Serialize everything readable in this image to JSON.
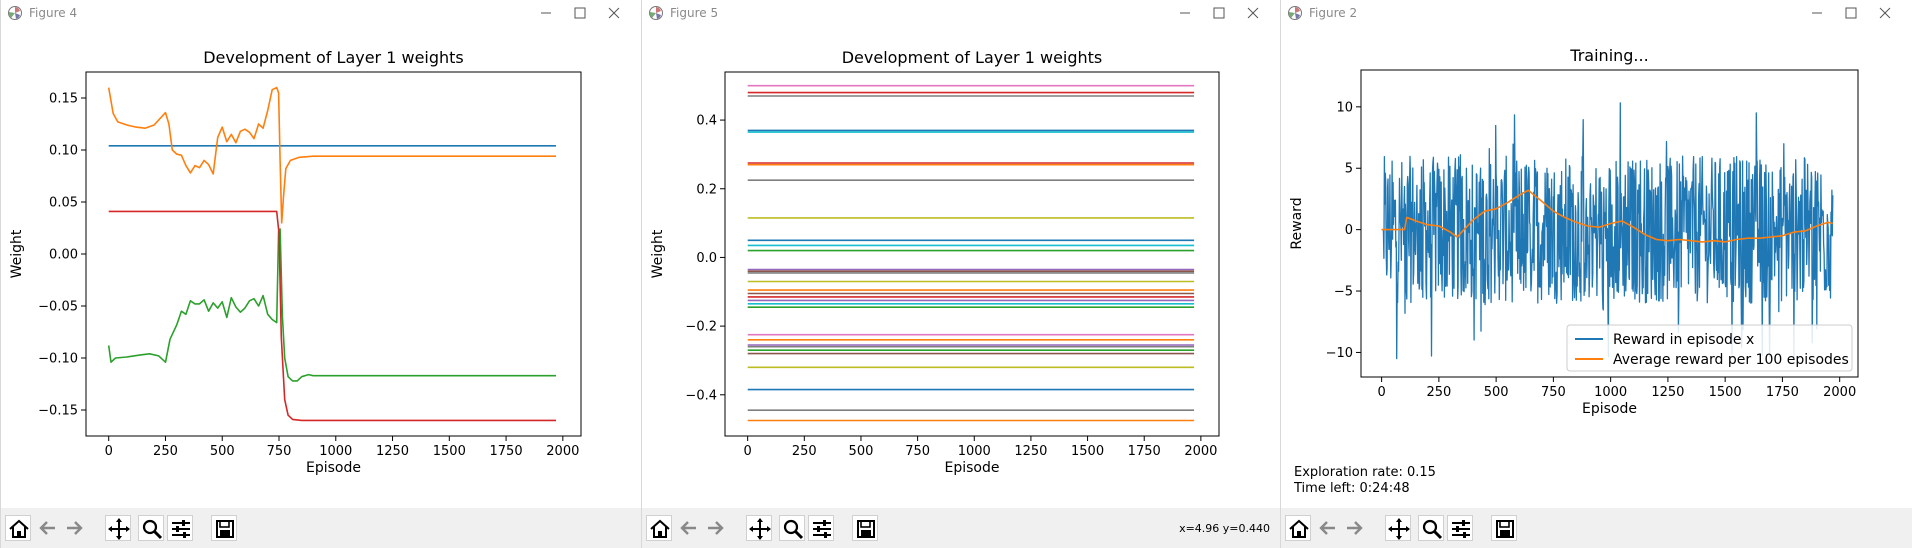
{
  "windows": [
    {
      "title": "Figure 4",
      "coords": "",
      "chart": {
        "type": "line",
        "title": "Development of Layer 1 weights",
        "xlabel": "Episode",
        "ylabel": "Weight",
        "xlim": [
          -100,
          2080
        ],
        "ylim": [
          -0.175,
          0.175
        ],
        "xticks": [
          0,
          250,
          500,
          750,
          1000,
          1250,
          1500,
          1750,
          2000
        ],
        "yticks": [
          -0.15,
          -0.1,
          -0.05,
          0.0,
          0.05,
          0.1,
          0.15
        ],
        "ytick_labels": [
          "−0.15",
          "−0.10",
          "−0.05",
          "0.00",
          "0.05",
          "0.10",
          "0.15"
        ]
      }
    },
    {
      "title": "Figure 5",
      "coords": "x=4.96 y=0.440",
      "chart": {
        "type": "line",
        "title": "Development of Layer 1 weights",
        "xlabel": "Episode",
        "ylabel": "Weight",
        "xlim": [
          -100,
          2080
        ],
        "ylim": [
          -0.52,
          0.54
        ],
        "xticks": [
          0,
          250,
          500,
          750,
          1000,
          1250,
          1500,
          1750,
          2000
        ],
        "yticks": [
          -0.4,
          -0.2,
          0.0,
          0.2,
          0.4
        ],
        "ytick_labels": [
          "−0.4",
          "−0.2",
          "0.0",
          "0.2",
          "0.4"
        ]
      }
    },
    {
      "title": "Figure 2",
      "coords": "",
      "exploration_rate": "Exploration rate: 0.15",
      "time_left": "Time left: 0:24:48",
      "chart": {
        "type": "line",
        "title": "Training...",
        "xlabel": "Episode",
        "ylabel": "Reward",
        "xlim": [
          -90,
          2080
        ],
        "ylim": [
          -12.0,
          13.0
        ],
        "xticks": [
          0,
          250,
          500,
          750,
          1000,
          1250,
          1500,
          1750,
          2000
        ],
        "yticks": [
          -10,
          -5,
          0,
          5,
          10
        ],
        "ytick_labels": [
          "−10",
          "−5",
          "0",
          "5",
          "10"
        ],
        "legend": [
          "Reward in episode x",
          "Average reward per 100 episodes"
        ],
        "legend_position": "lower-right"
      }
    }
  ],
  "chart_data": [
    {
      "type": "line",
      "title": "Development of Layer 1 weights",
      "xlabel": "Episode",
      "ylabel": "Weight",
      "xlim": [
        0,
        1970
      ],
      "ylim": [
        -0.175,
        0.175
      ],
      "series": [
        {
          "color": "#1f77b4",
          "points": [
            [
              0,
              0.104
            ],
            [
              1970,
              0.104
            ]
          ]
        },
        {
          "color": "#ff7f0e",
          "points": [
            [
              0,
              0.16
            ],
            [
              20,
              0.135
            ],
            [
              40,
              0.127
            ],
            [
              80,
              0.124
            ],
            [
              120,
              0.122
            ],
            [
              160,
              0.121
            ],
            [
              200,
              0.124
            ],
            [
              225,
              0.13
            ],
            [
              250,
              0.136
            ],
            [
              265,
              0.125
            ],
            [
              280,
              0.1
            ],
            [
              300,
              0.096
            ],
            [
              320,
              0.095
            ],
            [
              340,
              0.085
            ],
            [
              360,
              0.078
            ],
            [
              380,
              0.085
            ],
            [
              400,
              0.083
            ],
            [
              420,
              0.09
            ],
            [
              440,
              0.086
            ],
            [
              460,
              0.077
            ],
            [
              480,
              0.112
            ],
            [
              500,
              0.122
            ],
            [
              520,
              0.108
            ],
            [
              540,
              0.115
            ],
            [
              560,
              0.107
            ],
            [
              580,
              0.118
            ],
            [
              600,
              0.12
            ],
            [
              620,
              0.117
            ],
            [
              640,
              0.111
            ],
            [
              660,
              0.125
            ],
            [
              680,
              0.121
            ],
            [
              700,
              0.138
            ],
            [
              720,
              0.158
            ],
            [
              740,
              0.16
            ],
            [
              748,
              0.155
            ],
            [
              755,
              0.09
            ],
            [
              762,
              0.03
            ],
            [
              770,
              0.055
            ],
            [
              780,
              0.082
            ],
            [
              800,
              0.09
            ],
            [
              840,
              0.093
            ],
            [
              900,
              0.094
            ],
            [
              1970,
              0.094
            ]
          ]
        },
        {
          "color": "#2ca02c",
          "points": [
            [
              0,
              -0.088
            ],
            [
              10,
              -0.104
            ],
            [
              30,
              -0.1
            ],
            [
              80,
              -0.099
            ],
            [
              140,
              -0.097
            ],
            [
              180,
              -0.096
            ],
            [
              220,
              -0.098
            ],
            [
              250,
              -0.104
            ],
            [
              270,
              -0.082
            ],
            [
              300,
              -0.068
            ],
            [
              320,
              -0.055
            ],
            [
              340,
              -0.058
            ],
            [
              360,
              -0.045
            ],
            [
              380,
              -0.048
            ],
            [
              400,
              -0.048
            ],
            [
              420,
              -0.044
            ],
            [
              440,
              -0.055
            ],
            [
              460,
              -0.047
            ],
            [
              480,
              -0.052
            ],
            [
              500,
              -0.046
            ],
            [
              520,
              -0.061
            ],
            [
              540,
              -0.042
            ],
            [
              560,
              -0.051
            ],
            [
              580,
              -0.056
            ],
            [
              600,
              -0.052
            ],
            [
              620,
              -0.045
            ],
            [
              640,
              -0.043
            ],
            [
              660,
              -0.05
            ],
            [
              680,
              -0.04
            ],
            [
              700,
              -0.058
            ],
            [
              720,
              -0.063
            ],
            [
              740,
              -0.066
            ],
            [
              748,
              0.022
            ],
            [
              755,
              0.024
            ],
            [
              765,
              -0.06
            ],
            [
              775,
              -0.1
            ],
            [
              790,
              -0.118
            ],
            [
              810,
              -0.122
            ],
            [
              830,
              -0.122
            ],
            [
              850,
              -0.118
            ],
            [
              880,
              -0.116
            ],
            [
              900,
              -0.117
            ],
            [
              1970,
              -0.117
            ]
          ]
        },
        {
          "color": "#d62728",
          "points": [
            [
              0,
              0.041
            ],
            [
              740,
              0.041
            ],
            [
              750,
              0.02
            ],
            [
              760,
              -0.08
            ],
            [
              775,
              -0.14
            ],
            [
              790,
              -0.155
            ],
            [
              810,
              -0.159
            ],
            [
              850,
              -0.16
            ],
            [
              1970,
              -0.16
            ]
          ]
        }
      ]
    },
    {
      "type": "line",
      "title": "Development of Layer 1 weights",
      "xlabel": "Episode",
      "ylabel": "Weight",
      "xlim": [
        0,
        1970
      ],
      "ylim": [
        -0.52,
        0.54
      ],
      "series": [
        {
          "color": "#e377c2",
          "value": 0.5
        },
        {
          "color": "#d62728",
          "value": 0.48
        },
        {
          "color": "#7f7f7f",
          "value": 0.47
        },
        {
          "color": "#1f77b4",
          "value": 0.37
        },
        {
          "color": "#17becf",
          "value": 0.365
        },
        {
          "color": "#d62728",
          "value": 0.275
        },
        {
          "color": "#ff7f0e",
          "value": 0.27
        },
        {
          "color": "#7f7f7f",
          "value": 0.225
        },
        {
          "color": "#bcbd22",
          "value": 0.115
        },
        {
          "color": "#1f77b4",
          "value": 0.05
        },
        {
          "color": "#17becf",
          "value": 0.035
        },
        {
          "color": "#2ca02c",
          "value": 0.02
        },
        {
          "color": "#9467bd",
          "value": -0.035
        },
        {
          "color": "#8c564b",
          "value": -0.04
        },
        {
          "color": "#7f7f7f",
          "value": -0.045
        },
        {
          "color": "#bcbd22",
          "value": -0.07
        },
        {
          "color": "#ff7f0e",
          "value": -0.095
        },
        {
          "color": "#8c564b",
          "value": -0.105
        },
        {
          "color": "#d62728",
          "value": -0.115
        },
        {
          "color": "#9467bd",
          "value": -0.125
        },
        {
          "color": "#17becf",
          "value": -0.135
        },
        {
          "color": "#2ca02c",
          "value": -0.145
        },
        {
          "color": "#e377c2",
          "value": -0.225
        },
        {
          "color": "#ff7f0e",
          "value": -0.24
        },
        {
          "color": "#9467bd",
          "value": -0.255
        },
        {
          "color": "#7f7f7f",
          "value": -0.26
        },
        {
          "color": "#2ca02c",
          "value": -0.27
        },
        {
          "color": "#8c564b",
          "value": -0.28
        },
        {
          "color": "#bcbd22",
          "value": -0.32
        },
        {
          "color": "#1f77b4",
          "value": -0.385
        },
        {
          "color": "#7f7f7f",
          "value": -0.445
        },
        {
          "color": "#ff7f0e",
          "value": -0.475
        }
      ]
    },
    {
      "type": "line",
      "title": "Training...",
      "xlabel": "Episode",
      "ylabel": "Reward",
      "xlim": [
        0,
        1970
      ],
      "ylim": [
        -12.0,
        13.0
      ],
      "series": [
        {
          "name": "Reward in episode x",
          "color": "#1f77b4",
          "generator": "noisy",
          "n": 1970
        },
        {
          "name": "Average reward per 100 episodes",
          "color": "#ff7f0e",
          "points": [
            [
              0,
              0
            ],
            [
              100,
              0
            ],
            [
              110,
              1.0
            ],
            [
              150,
              0.7
            ],
            [
              200,
              0.4
            ],
            [
              250,
              0.3
            ],
            [
              300,
              -0.2
            ],
            [
              330,
              -0.6
            ],
            [
              350,
              -0.2
            ],
            [
              400,
              0.8
            ],
            [
              450,
              1.5
            ],
            [
              500,
              1.7
            ],
            [
              550,
              2.2
            ],
            [
              600,
              2.8
            ],
            [
              640,
              3.2
            ],
            [
              660,
              2.9
            ],
            [
              700,
              2.3
            ],
            [
              750,
              1.5
            ],
            [
              800,
              1.0
            ],
            [
              850,
              0.6
            ],
            [
              900,
              0.3
            ],
            [
              950,
              0.2
            ],
            [
              1000,
              0.5
            ],
            [
              1050,
              0.7
            ],
            [
              1100,
              0.2
            ],
            [
              1150,
              -0.4
            ],
            [
              1200,
              -0.8
            ],
            [
              1250,
              -0.9
            ],
            [
              1300,
              -0.8
            ],
            [
              1350,
              -0.9
            ],
            [
              1400,
              -1.0
            ],
            [
              1450,
              -0.9
            ],
            [
              1500,
              -1.0
            ],
            [
              1550,
              -0.8
            ],
            [
              1600,
              -0.7
            ],
            [
              1650,
              -0.7
            ],
            [
              1700,
              -0.6
            ],
            [
              1750,
              -0.5
            ],
            [
              1800,
              -0.2
            ],
            [
              1850,
              -0.1
            ],
            [
              1900,
              0.3
            ],
            [
              1950,
              0.6
            ],
            [
              1970,
              0.5
            ]
          ]
        }
      ]
    }
  ],
  "toolbar": {
    "icons": [
      "home-icon",
      "back-arrow-icon",
      "forward-arrow-icon",
      "pan-icon",
      "zoom-icon",
      "configure-icon",
      "save-icon"
    ]
  },
  "colors": {
    "toolbar_bg": "#f0f0f0",
    "axis": "#000000"
  }
}
